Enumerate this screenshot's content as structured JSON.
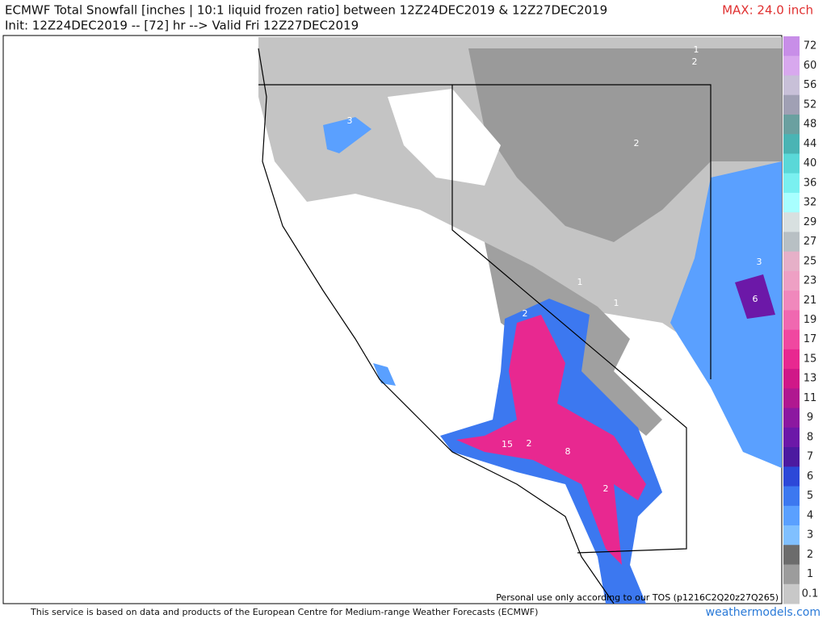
{
  "header": {
    "title": "ECMWF Total Snowfall [inches | 10:1 liquid frozen ratio] between 12Z24DEC2019 & 12Z27DEC2019",
    "subtitle": "Init: 12Z24DEC2019 -- [72] hr --> Valid Fri 12Z27DEC2019",
    "max": "MAX: 24.0 inch"
  },
  "colorbar": [
    {
      "label": 72,
      "color": "#c88ee8"
    },
    {
      "label": 60,
      "color": "#d8a8ee"
    },
    {
      "label": 56,
      "color": "#c8c0d8"
    },
    {
      "label": 52,
      "color": "#a0a0b4"
    },
    {
      "label": 48,
      "color": "#6aa0a0"
    },
    {
      "label": 44,
      "color": "#4ab4b4"
    },
    {
      "label": 40,
      "color": "#5ad8d8"
    },
    {
      "label": 36,
      "color": "#7af0f0"
    },
    {
      "label": 32,
      "color": "#a8ffff"
    },
    {
      "label": 29,
      "color": "#d8e0e0"
    },
    {
      "label": 27,
      "color": "#b8c0c4"
    },
    {
      "label": 25,
      "color": "#e6b0c8"
    },
    {
      "label": 23,
      "color": "#eea0c4"
    },
    {
      "label": 21,
      "color": "#f088bc"
    },
    {
      "label": 19,
      "color": "#f068b0"
    },
    {
      "label": 17,
      "color": "#f048a0"
    },
    {
      "label": 15,
      "color": "#e82890"
    },
    {
      "label": 13,
      "color": "#d01888"
    },
    {
      "label": 11,
      "color": "#b01890"
    },
    {
      "label": 9,
      "color": "#8c18a0"
    },
    {
      "label": 8,
      "color": "#6c18a8"
    },
    {
      "label": 7,
      "color": "#4c1aa0"
    },
    {
      "label": 6,
      "color": "#2c48d8"
    },
    {
      "label": 5,
      "color": "#3c78f0"
    },
    {
      "label": 4,
      "color": "#5aa0ff"
    },
    {
      "label": 3,
      "color": "#80c0ff"
    },
    {
      "label": 2,
      "color": "#6c6c6c"
    },
    {
      "label": 1,
      "color": "#9c9c9c"
    },
    {
      "label": 0.1,
      "color": "#c8c8c8"
    }
  ],
  "map_labels": [
    "1",
    "2",
    "3",
    "2",
    "1",
    "1",
    "3",
    "6",
    "2",
    "15",
    "2",
    "8",
    "2"
  ],
  "tos": "Personal use only according to our TOS (p1216C2Q20z27Q265)",
  "footer": "This service is based on data and products of the European Centre for Medium-range Weather Forecasts (ECMWF)",
  "site": "weathermodels.com"
}
